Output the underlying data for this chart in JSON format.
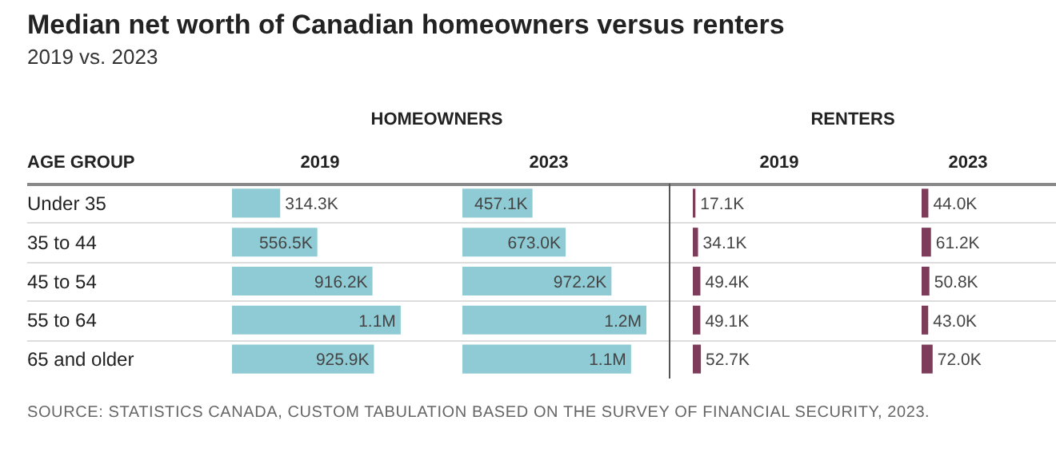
{
  "chart_data": [
    {
      "type": "bar",
      "orientation": "horizontal",
      "title": "Median net worth of Canadian homeowners versus renters",
      "subtitle": "2019 vs. 2023",
      "ylabel": "AGE GROUP",
      "annotations": [
        "HOMEOWNERS"
      ],
      "categories": [
        "Under 35",
        "35 to 44",
        "45 to 54",
        "55 to 64",
        "65 and older"
      ],
      "series": [
        {
          "name": "2019",
          "color": "#8ecbd4",
          "values": [
            314300,
            556500,
            916200,
            1100000,
            925900
          ],
          "value_labels": [
            "314.3K",
            "556.5K",
            "916.2K",
            "1.1M",
            "925.9K"
          ]
        }
      ],
      "grid": "y",
      "tick_labels": "y",
      "legend": false
    },
    {
      "type": "bar",
      "orientation": "horizontal",
      "categories": [
        null,
        null,
        null,
        null,
        null
      ],
      "series": [
        {
          "name": "2023",
          "color": "#8ecbd4",
          "values": [
            457100,
            673000,
            972200,
            1200000,
            1100000
          ],
          "value_labels": [
            "457.1K",
            "673.0K",
            "972.2K",
            "1.2M",
            "1.1M"
          ]
        }
      ],
      "grid": "y",
      "tick_labels": false,
      "legend": false
    },
    {
      "type": "bar",
      "orientation": "horizontal",
      "annotations": [
        "RENTERS"
      ],
      "categories": [
        null,
        null,
        null,
        null,
        null
      ],
      "series": [
        {
          "name": "2019",
          "color": "#7d3c5a",
          "values": [
            17100,
            34100,
            49400,
            49100,
            52700
          ],
          "value_labels": [
            "17.1K",
            "34.1K",
            "49.4K",
            "49.1K",
            "52.7K"
          ]
        }
      ],
      "grid": "y",
      "tick_labels": false,
      "legend": false
    },
    {
      "type": "bar",
      "orientation": "horizontal",
      "annotations": [
        "SOURCE: STATISTICS CANADA, CUSTOM TABULATION BASED ON THE SURVEY OF FINANCIAL SECURITY, 2023."
      ],
      "categories": [
        null,
        null,
        null,
        null,
        null
      ],
      "series": [
        {
          "name": "2023",
          "color": "#7d3c5a",
          "values": [
            44000,
            61200,
            50800,
            43000,
            72000
          ],
          "value_labels": [
            "44.0K",
            "61.2K",
            "50.8K",
            "43.0K",
            "72.0K"
          ]
        }
      ],
      "grid": "y",
      "tick_labels": false,
      "legend": false
    }
  ]
}
